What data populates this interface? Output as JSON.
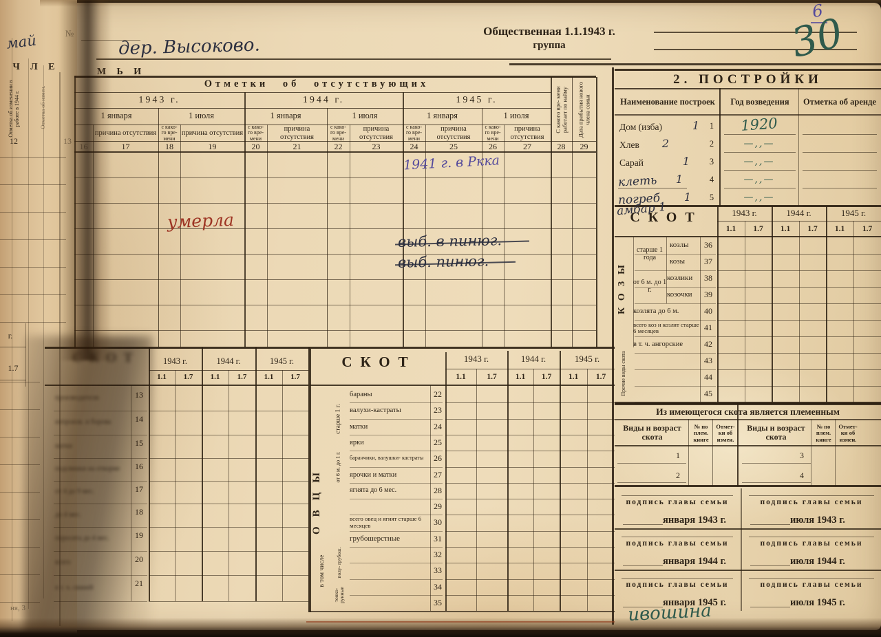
{
  "page": {
    "sheet_no_small": "6",
    "sheet_no_big": "30",
    "no_sign": "№",
    "month_note": "май",
    "address_value": "дер. Высоково.",
    "members_left": "Ч Л Е",
    "members_right": "М Ь И",
    "group_line1": "Общественная 1.1.1943 г.",
    "group_line2": "группа",
    "bottom_fragment": "ня, 3"
  },
  "prev_cols": {
    "col12_label": "Отметка об изменении в работе в 1944 г.",
    "col12_num": "12",
    "col13_label": "Отметка об измен.",
    "col13_num": "13",
    "year_g": "г.",
    "half_17": "1.7"
  },
  "absence": {
    "title": "Отметки об отсутствующих",
    "years": [
      "1943 г.",
      "1944 г.",
      "1945 г."
    ],
    "jan": "1 января",
    "jul": "1 июля",
    "since": "с како- го вре- мени",
    "reason": "причина отсутствия",
    "col28": "С какого вре- мени работает по найму",
    "col29": "Дата прибытия нового члена семьи",
    "numbers": [
      "16",
      "17",
      "18",
      "19",
      "20",
      "21",
      "22",
      "23",
      "24",
      "25",
      "26",
      "27",
      "28",
      "29"
    ],
    "hw_rkka": "1941 г. в Ркка",
    "hw_died": "умерла",
    "hw_crossed1": "выб. в пинюг.",
    "hw_crossed2": "выб. пинюг."
  },
  "pigs": {
    "title": "СКОТ",
    "years": [
      "1943 г.",
      "1944 г.",
      "1945 г."
    ],
    "half": [
      "1.1",
      "1.7"
    ],
    "rows": [
      {
        "num": "13",
        "label": "производители"
      },
      {
        "num": "14",
        "label": "непроизв. и борова"
      },
      {
        "num": "15",
        "label": "матки"
      },
      {
        "num": "16",
        "label": "подсвинки на откорме"
      },
      {
        "num": "17",
        "label": "от 4 до 9 мес."
      },
      {
        "num": "18",
        "label": "до 4 мес."
      },
      {
        "num": "19",
        "label": "поросята до 4 мес."
      },
      {
        "num": "20",
        "label": "всего"
      },
      {
        "num": "21",
        "label": "в т. ч. свиней"
      }
    ]
  },
  "sheep": {
    "title": "СКОТ",
    "vertical": "ОВЦЫ",
    "years": [
      "1943 г.",
      "1944 г.",
      "1945 г."
    ],
    "half": [
      "1.1",
      "1.7"
    ],
    "group1": "старше 1 г.",
    "group2": "от 6 м. до 1 г.",
    "group3": "в том числе",
    "sub1": "полу- грубош.",
    "sub2": "тонко- рунные",
    "rows": [
      {
        "num": "22",
        "label": "бараны"
      },
      {
        "num": "23",
        "label": "валухи-кастраты"
      },
      {
        "num": "24",
        "label": "матки"
      },
      {
        "num": "25",
        "label": "ярки"
      },
      {
        "num": "26",
        "label": "баранчики, валушки- кастраты"
      },
      {
        "num": "27",
        "label": "ярочки и матки"
      },
      {
        "num": "28",
        "label": "ягнята до 6 мес."
      },
      {
        "num": "29",
        "label": ""
      },
      {
        "num": "30",
        "label": "всего овец и ягнят старше 6 месяцев"
      },
      {
        "num": "31",
        "label": "грубошерстные"
      },
      {
        "num": "32",
        "label": ""
      },
      {
        "num": "33",
        "label": ""
      },
      {
        "num": "34",
        "label": ""
      },
      {
        "num": "35",
        "label": ""
      }
    ]
  },
  "buildings": {
    "title": "2. ПОСТРОЙКИ",
    "col1": "Наименование построек",
    "col2": "Год возведения",
    "col3": "Отметка об аренде",
    "rows": [
      {
        "name": "Дом (изба)",
        "hw": "1",
        "num": "1",
        "year": "1920",
        "printed": true
      },
      {
        "name": "Хлев",
        "hw": "2",
        "num": "2",
        "year": "—,,—",
        "printed": true
      },
      {
        "name": "Сарай",
        "hw": "1",
        "num": "3",
        "year": "—,,—",
        "printed": true
      },
      {
        "name": "клеть",
        "hw": "1",
        "num": "4",
        "year": "—,,—",
        "printed": false
      },
      {
        "name": "погреб",
        "hw": "1",
        "num": "5",
        "year": "—,,—",
        "printed": false
      }
    ],
    "extra_hw": "амбар 1"
  },
  "goats": {
    "title": "СКОТ",
    "vertical": "КОЗЫ",
    "years": [
      "1943 г.",
      "1944 г.",
      "1945 г."
    ],
    "half": [
      "1.1",
      "1.7"
    ],
    "group1": "старше 1 года",
    "group2": "от 6 м. до 1 г.",
    "group3": "Прочие виды скота",
    "rows": [
      {
        "num": "36",
        "label": "козлы"
      },
      {
        "num": "37",
        "label": "козы"
      },
      {
        "num": "38",
        "label": "козлики"
      },
      {
        "num": "39",
        "label": "козочки"
      },
      {
        "num": "40",
        "label": "козлята до 6 м."
      },
      {
        "num": "41",
        "label": "всего коз и козлят старше 6 месяцев"
      },
      {
        "num": "42",
        "label": "в т. ч. ангорские"
      },
      {
        "num": "43",
        "label": ""
      },
      {
        "num": "44",
        "label": ""
      },
      {
        "num": "45",
        "label": ""
      }
    ]
  },
  "pedigree": {
    "title": "Из имеющегося скота является племенным",
    "kind": "Виды и возраст скота",
    "book": "№ по плем. книге",
    "note": "Отмет- ки об измен.",
    "left_rows": [
      "1",
      "2"
    ],
    "right_rows": [
      "3",
      "4"
    ]
  },
  "signatures": {
    "caption": "подпись главы семьи",
    "dates": [
      "января 1943 г.",
      "июля 1943 г.",
      "января 1944 г.",
      "июля 1944 г.",
      "января 1945 г.",
      "июля 1945 г."
    ],
    "hw": "ивошина"
  }
}
